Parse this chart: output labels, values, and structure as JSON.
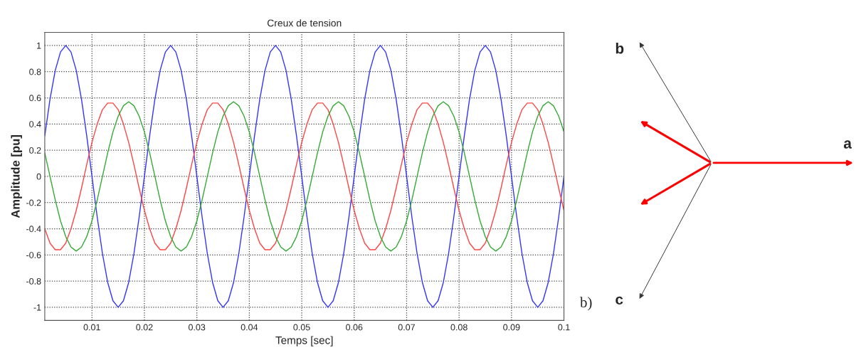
{
  "chart_data": {
    "type": "line",
    "title": "Creux de tension",
    "xlabel": "Temps [sec]",
    "ylabel": "Amplitude [pu]",
    "x": [
      0.001,
      0.002,
      0.003,
      0.004,
      0.005,
      0.006,
      0.007,
      0.008,
      0.009,
      0.01,
      0.011,
      0.012,
      0.013,
      0.014,
      0.015,
      0.016,
      0.017,
      0.018,
      0.019,
      0.02,
      0.021,
      0.022,
      0.023,
      0.024,
      0.025,
      0.026,
      0.027,
      0.028,
      0.029,
      0.03,
      0.031,
      0.032,
      0.033,
      0.034,
      0.035,
      0.036,
      0.037,
      0.038,
      0.039,
      0.04,
      0.041,
      0.042,
      0.043,
      0.044,
      0.045,
      0.046,
      0.047,
      0.048,
      0.049,
      0.05,
      0.051,
      0.052,
      0.053,
      0.054,
      0.055,
      0.056,
      0.057,
      0.058,
      0.059,
      0.06,
      0.061,
      0.062,
      0.063,
      0.064,
      0.065,
      0.066,
      0.067,
      0.068,
      0.069,
      0.07,
      0.071,
      0.072,
      0.073,
      0.074,
      0.075,
      0.076,
      0.077,
      0.078,
      0.079,
      0.08,
      0.081,
      0.082,
      0.083,
      0.084,
      0.085,
      0.086,
      0.087,
      0.088,
      0.089,
      0.09,
      0.091,
      0.092,
      0.093,
      0.094,
      0.095,
      0.096,
      0.097,
      0.098,
      0.099,
      0.1
    ],
    "series": [
      {
        "color": "#3333ff",
        "values": [
          0.31,
          0.59,
          0.81,
          0.95,
          1,
          0.95,
          0.81,
          0.59,
          0.31,
          0,
          -0.31,
          -0.59,
          -0.81,
          -0.95,
          -1,
          -0.95,
          -0.81,
          -0.59,
          -0.31,
          0,
          0.31,
          0.59,
          0.81,
          0.95,
          1,
          0.95,
          0.81,
          0.59,
          0.31,
          0,
          -0.31,
          -0.59,
          -0.81,
          -0.95,
          -1,
          -0.95,
          -0.81,
          -0.59,
          -0.31,
          0,
          0.31,
          0.59,
          0.81,
          0.95,
          1,
          0.95,
          0.81,
          0.59,
          0.31,
          0,
          -0.31,
          -0.59,
          -0.81,
          -0.95,
          -1,
          -0.95,
          -0.81,
          -0.59,
          -0.31,
          0,
          0.31,
          0.59,
          0.81,
          0.95,
          1,
          0.95,
          0.81,
          0.59,
          0.31,
          0,
          -0.31,
          -0.59,
          -0.81,
          -0.95,
          -1,
          -0.95,
          -0.81,
          -0.59,
          -0.31,
          0,
          0.31,
          0.59,
          0.81,
          0.95,
          1,
          0.95,
          0.81,
          0.59,
          0.31,
          0,
          -0.31,
          -0.59,
          -0.81,
          -0.95,
          -1,
          -0.95,
          -0.81,
          -0.59,
          -0.31,
          0
        ]
      },
      {
        "color": "#ff4444",
        "values": [
          -0.4,
          -0.51,
          -0.56,
          -0.56,
          -0.51,
          -0.4,
          -0.26,
          -0.09,
          0.09,
          0.26,
          0.4,
          0.51,
          0.56,
          0.56,
          0.51,
          0.4,
          0.26,
          0.09,
          -0.09,
          -0.26,
          -0.4,
          -0.51,
          -0.56,
          -0.56,
          -0.51,
          -0.4,
          -0.26,
          -0.09,
          0.09,
          0.26,
          0.4,
          0.51,
          0.56,
          0.56,
          0.51,
          0.4,
          0.26,
          0.09,
          -0.09,
          -0.26,
          -0.4,
          -0.51,
          -0.56,
          -0.56,
          -0.51,
          -0.4,
          -0.26,
          -0.09,
          0.09,
          0.26,
          0.4,
          0.51,
          0.56,
          0.56,
          0.51,
          0.4,
          0.26,
          0.09,
          -0.09,
          -0.26,
          -0.4,
          -0.51,
          -0.56,
          -0.56,
          -0.51,
          -0.4,
          -0.26,
          -0.09,
          0.09,
          0.26,
          0.4,
          0.51,
          0.56,
          0.56,
          0.51,
          0.4,
          0.26,
          0.09,
          -0.09,
          -0.26,
          -0.4,
          -0.51,
          -0.56,
          -0.56,
          -0.51,
          -0.4,
          -0.26,
          -0.09,
          0.09,
          0.26,
          0.4,
          0.51,
          0.56,
          0.56,
          0.51,
          0.4,
          0.26,
          0.09,
          -0.09,
          -0.26
        ]
      },
      {
        "color": "#33aa33",
        "values": [
          0.18,
          0,
          -0.18,
          -0.34,
          -0.46,
          -0.54,
          -0.57,
          -0.54,
          -0.46,
          -0.34,
          -0.18,
          0,
          0.18,
          0.34,
          0.46,
          0.54,
          0.57,
          0.54,
          0.46,
          0.34,
          0.18,
          0,
          -0.18,
          -0.34,
          -0.46,
          -0.54,
          -0.57,
          -0.54,
          -0.46,
          -0.34,
          -0.18,
          0,
          0.18,
          0.34,
          0.46,
          0.54,
          0.57,
          0.54,
          0.46,
          0.34,
          0.18,
          0,
          -0.18,
          -0.34,
          -0.46,
          -0.54,
          -0.57,
          -0.54,
          -0.46,
          -0.34,
          -0.18,
          0,
          0.18,
          0.34,
          0.46,
          0.54,
          0.57,
          0.54,
          0.46,
          0.34,
          0.18,
          0,
          -0.18,
          -0.34,
          -0.46,
          -0.54,
          -0.57,
          -0.54,
          -0.46,
          -0.34,
          -0.18,
          0,
          0.18,
          0.34,
          0.46,
          0.54,
          0.57,
          0.54,
          0.46,
          0.34,
          0.18,
          0,
          -0.18,
          -0.34,
          -0.46,
          -0.54,
          -0.57,
          -0.54,
          -0.46,
          -0.34,
          -0.18,
          0,
          0.18,
          0.34,
          0.46,
          0.54,
          0.57,
          0.54,
          0.46,
          0.34
        ]
      }
    ],
    "xlim": [
      0.001,
      0.1
    ],
    "xticks": [
      0.01,
      0.02,
      0.03,
      0.04,
      0.05,
      0.06,
      0.07,
      0.08,
      0.09,
      0.1
    ],
    "ylim": [
      -1.1,
      1.1
    ],
    "yticks": [
      -1,
      -0.8,
      -0.6,
      -0.4,
      -0.2,
      0,
      0.2,
      0.4,
      0.6,
      0.8,
      1
    ],
    "grid": true,
    "line_style": "solid",
    "marker": "none",
    "annotations": [
      "a",
      "b",
      "c",
      "b)"
    ]
  }
}
